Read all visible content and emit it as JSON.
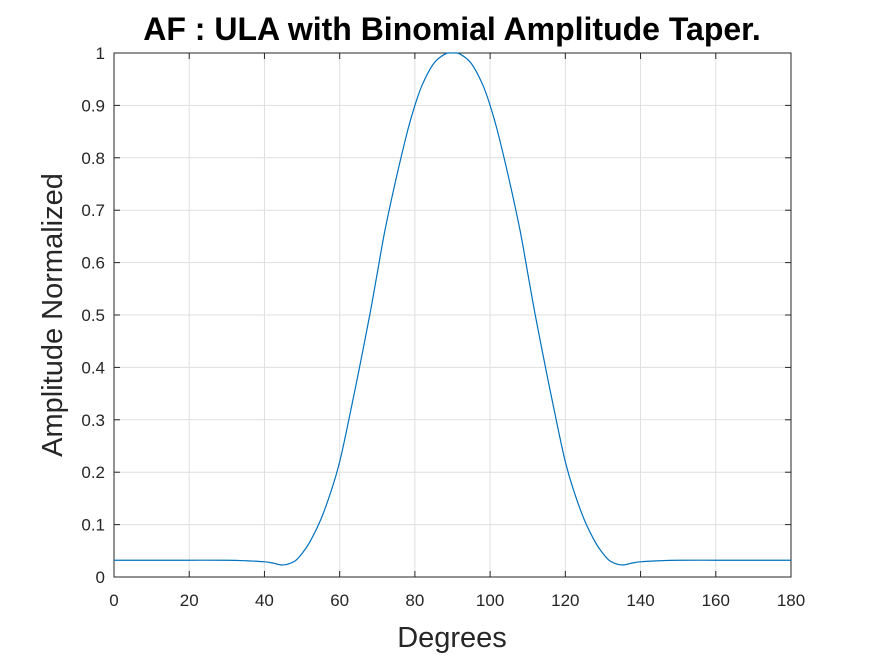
{
  "chart_data": {
    "type": "line",
    "title": "AF : ULA with Binomial Amplitude Taper.",
    "xlabel": "Degrees",
    "ylabel": "Amplitude Normalized",
    "xlim": [
      0,
      180
    ],
    "ylim": [
      0,
      1
    ],
    "xticks": [
      0,
      20,
      40,
      60,
      80,
      100,
      120,
      140,
      160,
      180
    ],
    "yticks": [
      0,
      0.1,
      0.2,
      0.3,
      0.4,
      0.5,
      0.6,
      0.7,
      0.8,
      0.9,
      1
    ],
    "xtick_labels": [
      "0",
      "20",
      "40",
      "60",
      "80",
      "100",
      "120",
      "140",
      "160",
      "180"
    ],
    "ytick_labels": [
      "0",
      "0.1",
      "0.2",
      "0.3",
      "0.4",
      "0.5",
      "0.6",
      "0.7",
      "0.8",
      "0.9",
      "1"
    ],
    "grid": true,
    "line_color": "#0072BD",
    "series": [
      {
        "x": [
          0,
          10,
          20,
          30,
          35,
          40,
          42,
          45,
          48,
          50,
          52,
          55,
          58,
          60,
          62,
          65,
          68,
          70,
          72,
          75,
          78,
          80,
          82,
          85,
          88,
          90,
          92,
          95,
          98,
          100,
          102,
          105,
          108,
          110,
          112,
          115,
          118,
          120,
          122,
          125,
          128,
          130,
          132,
          135,
          138,
          140,
          145,
          150,
          160,
          170,
          180
        ],
        "y": [
          0.032,
          0.032,
          0.032,
          0.032,
          0.031,
          0.029,
          0.027,
          0.023,
          0.03,
          0.045,
          0.066,
          0.11,
          0.17,
          0.22,
          0.285,
          0.39,
          0.5,
          0.58,
          0.66,
          0.76,
          0.85,
          0.9,
          0.94,
          0.98,
          0.998,
          1.0,
          0.998,
          0.98,
          0.94,
          0.9,
          0.85,
          0.76,
          0.66,
          0.58,
          0.5,
          0.39,
          0.285,
          0.22,
          0.17,
          0.11,
          0.066,
          0.045,
          0.03,
          0.023,
          0.027,
          0.029,
          0.031,
          0.032,
          0.032,
          0.032,
          0.032
        ]
      }
    ]
  }
}
